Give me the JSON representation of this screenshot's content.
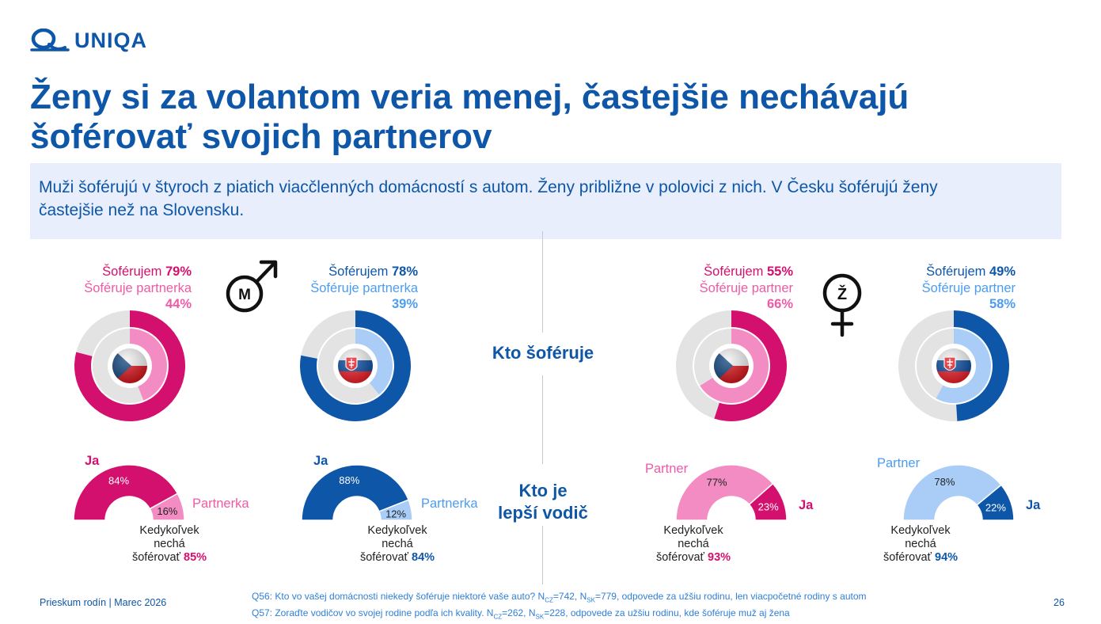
{
  "brand": {
    "name": "UNIQA",
    "color": "#0e56a8"
  },
  "header": {
    "title_line1": "Ženy si za volantom veria menej, častejšie nechávajú",
    "title_line2": "šoférovať svojich partnerov",
    "summary_line1": "Muži šoférujú v štyroch z piatich viacčlenných domácností s autom. Ženy približne v polovici z nich. V Česku šoférujú ženy",
    "summary_line2": "častejšie než na Slovensku."
  },
  "center_labels": {
    "who_drives": "Kto šoféruje",
    "better_driver_line1": "Kto je",
    "better_driver_line2": "lepší vodič"
  },
  "gender_icons": {
    "male_letter": "M",
    "female_letter": "Ž",
    "male_icon": "male-symbol-icon",
    "female_icon": "female-symbol-icon"
  },
  "colors": {
    "cz_dark": "#d4106e",
    "cz_light": "#f48cc4",
    "sk_dark": "#0e56a8",
    "sk_light": "#a9cdf7",
    "remainder": "#e3e3e3"
  },
  "panels": {
    "men_cz": {
      "line1_prefix": "Šoférujem ",
      "line1_value": "79%",
      "line2": "Šoféruje partnerka",
      "line3_value": "44%",
      "flag_icon": "czech-flag-icon",
      "gauge": {
        "self_label": "Ja",
        "self_pct": "84%",
        "partner_label": "Partnerka",
        "partner_pct": "16%",
        "cap1": "Kedykoľvek",
        "cap2": "nechá",
        "cap3_prefix": "šoférovať ",
        "cap3_value": "85%"
      }
    },
    "men_sk": {
      "line1_prefix": "Šoférujem ",
      "line1_value": "78%",
      "line2": "Šoféruje partnerka",
      "line3_value": "39%",
      "flag_icon": "slovak-flag-icon",
      "gauge": {
        "self_label": "Ja",
        "self_pct": "88%",
        "partner_label": "Partnerka",
        "partner_pct": "12%",
        "cap1": "Kedykoľvek",
        "cap2": "nechá",
        "cap3_prefix": "šoférovať ",
        "cap3_value": "84%"
      }
    },
    "women_cz": {
      "line1_prefix": "Šoférujem ",
      "line1_value": "55%",
      "line2": "Šoféruje partner",
      "line3_value": "66%",
      "flag_icon": "czech-flag-icon",
      "gauge": {
        "self_label": "Ja",
        "self_pct": "23%",
        "partner_label": "Partner",
        "partner_pct": "77%",
        "cap1": "Kedykoľvek",
        "cap2": "nechá",
        "cap3_prefix": "šoférovať ",
        "cap3_value": "93%"
      }
    },
    "women_sk": {
      "line1_prefix": "Šoférujem ",
      "line1_value": "49%",
      "line2": "Šoféruje partner",
      "line3_value": "58%",
      "flag_icon": "slovak-flag-icon",
      "gauge": {
        "self_label": "Ja",
        "self_pct": "22%",
        "partner_label": "Partner",
        "partner_pct": "78%",
        "cap1": "Kedykoľvek",
        "cap2": "nechá",
        "cap3_prefix": "šoférovať ",
        "cap3_value": "94%"
      }
    }
  },
  "chart_data": [
    {
      "type": "pie",
      "subtype": "nested-donut",
      "panel": "men_cz",
      "country": "CZ",
      "series": [
        {
          "name": "Šoférujem",
          "ring": "outer",
          "value": 79
        },
        {
          "name": "Šoféruje partnerka",
          "ring": "inner",
          "value": 44
        }
      ]
    },
    {
      "type": "pie",
      "subtype": "nested-donut",
      "panel": "men_sk",
      "country": "SK",
      "series": [
        {
          "name": "Šoférujem",
          "ring": "outer",
          "value": 78
        },
        {
          "name": "Šoféruje partnerka",
          "ring": "inner",
          "value": 39
        }
      ]
    },
    {
      "type": "pie",
      "subtype": "nested-donut",
      "panel": "women_cz",
      "country": "CZ",
      "series": [
        {
          "name": "Šoférujem",
          "ring": "outer",
          "value": 55
        },
        {
          "name": "Šoféruje partner",
          "ring": "inner",
          "value": 66
        }
      ]
    },
    {
      "type": "pie",
      "subtype": "nested-donut",
      "panel": "women_sk",
      "country": "SK",
      "series": [
        {
          "name": "Šoférujem",
          "ring": "outer",
          "value": 49
        },
        {
          "name": "Šoféruje partner",
          "ring": "inner",
          "value": 58
        }
      ]
    },
    {
      "type": "pie",
      "subtype": "half-donut",
      "panel": "men_cz",
      "categories": [
        "Ja",
        "Partnerka"
      ],
      "values": [
        84,
        16
      ],
      "order": "self-first"
    },
    {
      "type": "pie",
      "subtype": "half-donut",
      "panel": "men_sk",
      "categories": [
        "Ja",
        "Partnerka"
      ],
      "values": [
        88,
        12
      ],
      "order": "self-first"
    },
    {
      "type": "pie",
      "subtype": "half-donut",
      "panel": "women_cz",
      "categories": [
        "Partner",
        "Ja"
      ],
      "values": [
        77,
        23
      ],
      "order": "partner-first"
    },
    {
      "type": "pie",
      "subtype": "half-donut",
      "panel": "women_sk",
      "categories": [
        "Partner",
        "Ja"
      ],
      "values": [
        78,
        22
      ],
      "order": "partner-first"
    }
  ],
  "footer": {
    "left": "Prieskum rodín | Marec 2026",
    "note1_a": "Q56: Kto vo vašej domácnosti niekedy šoféruje niektoré vaše auto? N",
    "note1_sub1": "CZ",
    "note1_b": "=742, N",
    "note1_sub2": "SK",
    "note1_c": "=779, odpovede za užšiu rodinu, len viacpočetné rodiny s autom",
    "note2_a": "Q57: Zoraďte vodičov vo svojej rodine podľa ich kvality. N",
    "note2_sub1": "CZ",
    "note2_b": "=262, N",
    "note2_sub2": "SK",
    "note2_c": "=228, odpovede za užšiu rodinu, kde šoféruje muž aj žena",
    "page": "26"
  }
}
